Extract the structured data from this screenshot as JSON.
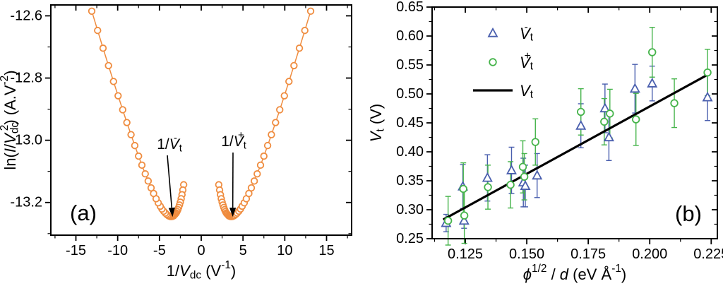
{
  "figure": {
    "panels": [
      {
        "label": "(a)",
        "description": "Fowler-Nordheim plot"
      },
      {
        "label": "(b)",
        "description": "Threshold voltage vs sqrt(phi)/d"
      }
    ]
  },
  "chart_data": [
    {
      "type": "scatter",
      "panel_label": "(a)",
      "xlabel": "1/V_dc (V^-1)",
      "ylabel": "ln(I/V_dc^2) (A.V^-2)",
      "xlabel_segments": [
        [
          "1/",
          ""
        ],
        [
          "V",
          "i"
        ],
        [
          "dc",
          "sub"
        ],
        [
          " (V",
          ""
        ],
        [
          "-1",
          "sup"
        ],
        [
          ")",
          ""
        ]
      ],
      "ylabel_segments": [
        [
          "ln(",
          ""
        ],
        [
          "I",
          "i"
        ],
        [
          "/",
          ""
        ],
        [
          "V",
          "i"
        ],
        [
          "dc",
          "sub"
        ],
        [
          "2",
          "sups"
        ],
        [
          ") (A.V",
          ""
        ],
        [
          "-2",
          "sup"
        ],
        [
          ")",
          ""
        ]
      ],
      "xlim": [
        -18,
        18
      ],
      "ylim": [
        -13.305,
        -12.565
      ],
      "xticks": [
        -15,
        -10,
        -5,
        0,
        5,
        10,
        15
      ],
      "xtick_labels": [
        "-15",
        "-10",
        "-5",
        "0",
        "5",
        "10",
        "15"
      ],
      "x_minor_step": 2.5,
      "yticks": [
        -13.2,
        -13.0,
        -12.8,
        -12.6
      ],
      "ytick_labels": [
        "-13.2",
        "-13.0",
        "-12.8",
        "-12.6"
      ],
      "y_minor_step": 0.1,
      "grid": false,
      "marker_color": "#ef8c3f",
      "series": [
        {
          "name": "negative-branch",
          "x": [
            -2.1,
            -2.2,
            -2.3,
            -2.4,
            -2.5,
            -2.6,
            -2.7,
            -2.8,
            -2.9,
            -3.0,
            -3.1,
            -3.2,
            -3.3,
            -3.4,
            -3.5,
            -3.6,
            -3.7,
            -3.8,
            -3.9,
            -4.0,
            -4.15,
            -4.3,
            -4.5,
            -4.7,
            -4.9,
            -5.15,
            -5.4,
            -5.7,
            -6.0,
            -6.35,
            -6.7,
            -7.1,
            -7.5,
            -7.95,
            -8.4,
            -8.9,
            -9.4,
            -9.95,
            -10.5,
            -11.1,
            -11.75,
            -12.4,
            -13.1
          ],
          "y": [
            -13.143,
            -13.16,
            -13.175,
            -13.188,
            -13.199,
            -13.208,
            -13.216,
            -13.223,
            -13.229,
            -13.234,
            -13.237,
            -13.24,
            -13.243,
            -13.244,
            -13.245,
            -13.245,
            -13.245,
            -13.244,
            -13.243,
            -13.241,
            -13.238,
            -13.234,
            -13.228,
            -13.221,
            -13.212,
            -13.201,
            -13.188,
            -13.171,
            -13.153,
            -13.131,
            -13.108,
            -13.08,
            -13.051,
            -13.017,
            -12.982,
            -12.943,
            -12.902,
            -12.857,
            -12.811,
            -12.76,
            -12.704,
            -12.647,
            -12.585
          ]
        },
        {
          "name": "positive-branch",
          "x": [
            2.1,
            2.2,
            2.3,
            2.4,
            2.5,
            2.6,
            2.7,
            2.8,
            2.9,
            3.0,
            3.1,
            3.2,
            3.3,
            3.4,
            3.5,
            3.6,
            3.7,
            3.8,
            3.9,
            4.0,
            4.15,
            4.3,
            4.5,
            4.7,
            4.9,
            5.15,
            5.4,
            5.7,
            6.0,
            6.35,
            6.7,
            7.1,
            7.5,
            7.95,
            8.4,
            8.9,
            9.4,
            9.95,
            10.5,
            11.1,
            11.75,
            12.4,
            13.1
          ],
          "y": [
            -13.143,
            -13.16,
            -13.175,
            -13.188,
            -13.199,
            -13.208,
            -13.216,
            -13.223,
            -13.229,
            -13.234,
            -13.237,
            -13.24,
            -13.243,
            -13.244,
            -13.245,
            -13.245,
            -13.245,
            -13.244,
            -13.243,
            -13.241,
            -13.238,
            -13.234,
            -13.228,
            -13.221,
            -13.212,
            -13.201,
            -13.188,
            -13.171,
            -13.153,
            -13.131,
            -13.108,
            -13.08,
            -13.051,
            -13.017,
            -12.982,
            -12.943,
            -12.902,
            -12.857,
            -12.811,
            -12.76,
            -12.704,
            -12.647,
            -12.585
          ]
        }
      ],
      "annotations": [
        {
          "text": "1/V_t^-",
          "segments": [
            [
              "1/",
              ""
            ],
            [
              "V",
              "i"
            ],
            [
              "t",
              "sub"
            ],
            [
              "-",
              "sups"
            ]
          ],
          "points_to": {
            "x": -3.6,
            "y": -13.21
          }
        },
        {
          "text": "1/V_t^+",
          "segments": [
            [
              "1/",
              ""
            ],
            [
              "V",
              "i"
            ],
            [
              "t",
              "sub"
            ],
            [
              "+",
              "sups"
            ]
          ],
          "points_to": {
            "x": 3.6,
            "y": -13.21
          }
        }
      ]
    },
    {
      "type": "scatter",
      "panel_label": "(b)",
      "xlabel": "phi^1/2 / d (eV A^-1)",
      "ylabel": "V_t (V)",
      "xlabel_segments": [
        [
          "ϕ",
          "i"
        ],
        [
          "1/2",
          "sup"
        ],
        [
          " / ",
          ""
        ],
        [
          "d",
          "i"
        ],
        [
          " (eV Å",
          ""
        ],
        [
          "-1",
          "sup"
        ],
        [
          ")",
          ""
        ]
      ],
      "ylabel_segments": [
        [
          "V",
          "i"
        ],
        [
          "t",
          "sub"
        ],
        [
          " (V)",
          ""
        ]
      ],
      "xlim": [
        0.1115,
        0.2275
      ],
      "ylim": [
        0.25,
        0.65
      ],
      "xticks": [
        0.125,
        0.15,
        0.175,
        0.2,
        0.225
      ],
      "xtick_labels": [
        "0.125",
        "0.150",
        "0.175",
        "0.200",
        "0.225"
      ],
      "x_minor_step": 0.0125,
      "yticks": [
        0.25,
        0.3,
        0.35,
        0.4,
        0.45,
        0.5,
        0.55,
        0.6,
        0.65
      ],
      "ytick_labels": [
        "0.25",
        "0.30",
        "0.35",
        "0.40",
        "0.45",
        "0.50",
        "0.55",
        "0.60",
        "0.65"
      ],
      "y_minor_step": 0.025,
      "grid": false,
      "series": [
        {
          "name": "Vt_minus",
          "label": "V_t^-",
          "marker": "triangle",
          "color": "#4a5fae",
          "points": [
            [
              0.1172,
              0.277,
              0.015
            ],
            [
              0.124,
              0.34,
              0.038
            ],
            [
              0.1245,
              0.281,
              0.013
            ],
            [
              0.134,
              0.355,
              0.04
            ],
            [
              0.1438,
              0.368,
              0.04
            ],
            [
              0.1486,
              0.347,
              0.042
            ],
            [
              0.1494,
              0.341,
              0.036
            ],
            [
              0.1542,
              0.359,
              0.038
            ],
            [
              0.172,
              0.445,
              0.038
            ],
            [
              0.1818,
              0.475,
              0.042
            ],
            [
              0.1834,
              0.425,
              0.04
            ],
            [
              0.194,
              0.509,
              0.042
            ],
            [
              0.201,
              0.518,
              0.03
            ],
            [
              0.2235,
              0.494,
              0.04
            ]
          ]
        },
        {
          "name": "Vt_plus",
          "label": "V_t^+",
          "marker": "circle",
          "color": "#46b44b",
          "points": [
            [
              0.118,
              0.281,
              0.042
            ],
            [
              0.1242,
              0.336,
              0.045
            ],
            [
              0.1246,
              0.29,
              0.048
            ],
            [
              0.1342,
              0.339,
              0.038
            ],
            [
              0.1434,
              0.343,
              0.04
            ],
            [
              0.1484,
              0.374,
              0.045
            ],
            [
              0.149,
              0.357,
              0.04
            ],
            [
              0.1535,
              0.417,
              0.04
            ],
            [
              0.172,
              0.469,
              0.04
            ],
            [
              0.1815,
              0.452,
              0.04
            ],
            [
              0.1838,
              0.466,
              0.042
            ],
            [
              0.1944,
              0.456,
              0.045
            ],
            [
              0.201,
              0.572,
              0.043
            ],
            [
              0.21,
              0.484,
              0.042
            ],
            [
              0.2235,
              0.537,
              0.04
            ]
          ]
        },
        {
          "name": "Vt_fit",
          "label": "V_t",
          "marker": "line",
          "color": "#000000",
          "x": [
            0.116,
            0.2235
          ],
          "y": [
            0.283,
            0.533
          ]
        }
      ],
      "legend": {
        "position": "upper-left",
        "items": [
          {
            "marker": "triangle",
            "color": "#4a5fae",
            "label": "V_t^-",
            "segments": [
              [
                "V",
                "i"
              ],
              [
                "t",
                "sub"
              ],
              [
                "-",
                "sups"
              ]
            ]
          },
          {
            "marker": "circle",
            "color": "#46b44b",
            "label": "V_t^+",
            "segments": [
              [
                "V",
                "i"
              ],
              [
                "t",
                "sub"
              ],
              [
                "+",
                "sups"
              ]
            ]
          },
          {
            "marker": "line",
            "color": "#000000",
            "label": "V_t",
            "segments": [
              [
                "V",
                "i"
              ],
              [
                "t",
                "sub"
              ]
            ]
          }
        ]
      }
    }
  ]
}
